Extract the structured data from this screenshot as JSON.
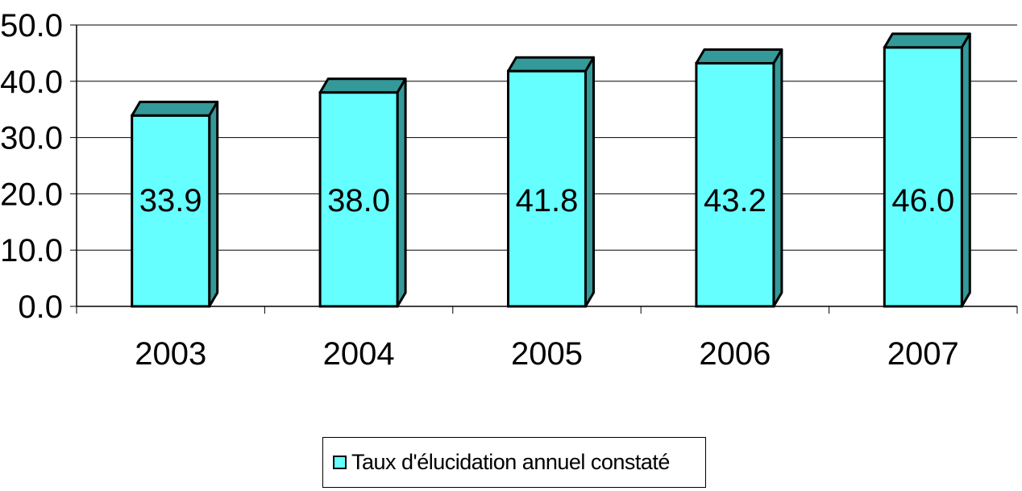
{
  "chart_data": {
    "type": "bar",
    "categories": [
      "2003",
      "2004",
      "2005",
      "2006",
      "2007"
    ],
    "series": [
      {
        "name": "Taux d'élucidation annuel constaté",
        "values": [
          33.9,
          38.0,
          41.8,
          43.2,
          46.0
        ],
        "color": "#66ffff",
        "side_color": "#339999"
      }
    ],
    "data_labels": [
      "33.9",
      "38.0",
      "41.8",
      "43.2",
      "46.0"
    ],
    "yticks": [
      "0.0",
      "10.0",
      "20.0",
      "30.0",
      "40.0",
      "50.0"
    ],
    "ylim": [
      0,
      50
    ],
    "grid": true,
    "legend_position": "bottom",
    "title": "",
    "xlabel": "",
    "ylabel": ""
  },
  "legend": {
    "label": "Taux d'élucidation annuel constaté"
  }
}
